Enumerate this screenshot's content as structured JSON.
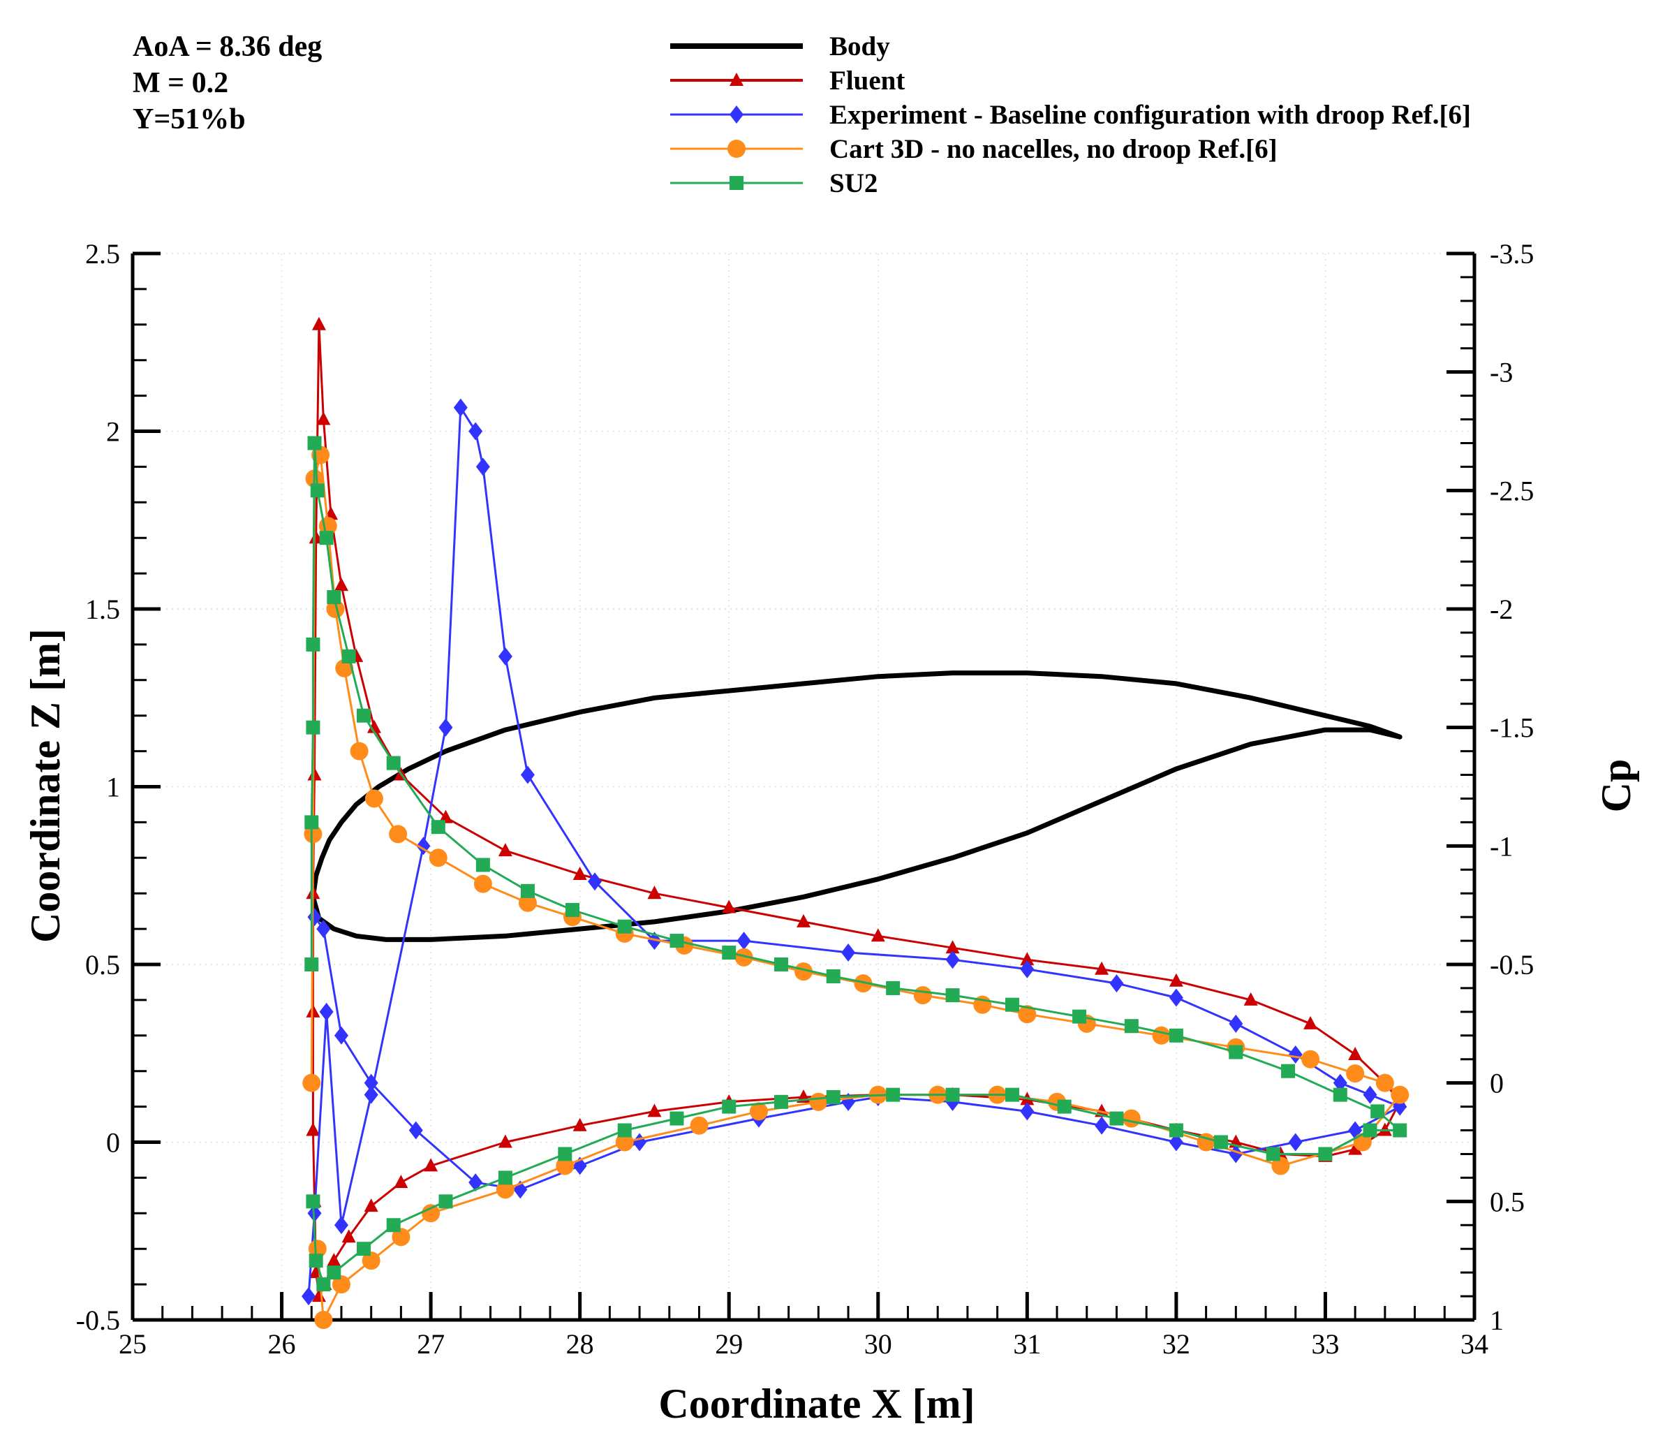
{
  "chart_data": {
    "type": "line",
    "annotations": [
      "AoA = 8.36 deg",
      "M = 0.2",
      "Y=51%b"
    ],
    "xlabel": "Coordinate X [m]",
    "ylabel_left": "Coordinate Z [m]",
    "ylabel_right": "Cp",
    "xlim": [
      25,
      34
    ],
    "ylim_left": [
      -0.5,
      2.5
    ],
    "ylim_right": [
      1,
      -3.5
    ],
    "x_ticks": [
      25,
      26,
      27,
      28,
      29,
      30,
      31,
      32,
      33,
      34
    ],
    "x_tick_labels": [
      "25",
      "26",
      "27",
      "28",
      "29",
      "30",
      "31",
      "32",
      "33",
      "34"
    ],
    "y_left_ticks": [
      -0.5,
      0,
      0.5,
      1,
      1.5,
      2,
      2.5
    ],
    "y_left_tick_labels": [
      "-0.5",
      "0",
      "0.5",
      "1",
      "1.5",
      "2",
      "2.5"
    ],
    "y_right_ticks": [
      1,
      0.5,
      0,
      -0.5,
      -1,
      -1.5,
      -2,
      -2.5,
      -3,
      -3.5
    ],
    "y_right_tick_labels": [
      "1",
      "0.5",
      "0",
      "-0.5",
      "-1",
      "-1.5",
      "-2",
      "-2.5",
      "-3",
      "-3.5"
    ],
    "legend_position": "top",
    "series": [
      {
        "name": "Body",
        "axis": "left",
        "color": "#000000",
        "marker": "none",
        "x": [
          26.21,
          26.23,
          26.27,
          26.32,
          26.4,
          26.5,
          26.65,
          26.85,
          27.1,
          27.5,
          28,
          28.5,
          29,
          29.5,
          30,
          30.5,
          31,
          31.5,
          32,
          32.5,
          33,
          33.3,
          33.5,
          33.3,
          33.0,
          32.5,
          32.0,
          31.5,
          31.0,
          30.5,
          30.0,
          29.5,
          29.0,
          28.5,
          28.0,
          27.5,
          27.0,
          26.7,
          26.5,
          26.35,
          26.25,
          26.21
        ],
        "y": [
          0.69,
          0.75,
          0.8,
          0.85,
          0.9,
          0.95,
          1.0,
          1.05,
          1.1,
          1.16,
          1.21,
          1.25,
          1.27,
          1.29,
          1.31,
          1.32,
          1.32,
          1.31,
          1.29,
          1.25,
          1.2,
          1.17,
          1.14,
          1.16,
          1.16,
          1.12,
          1.05,
          0.96,
          0.87,
          0.8,
          0.74,
          0.69,
          0.65,
          0.62,
          0.6,
          0.58,
          0.57,
          0.57,
          0.58,
          0.6,
          0.63,
          0.69
        ]
      },
      {
        "name": "Fluent",
        "axis": "right",
        "color": "#cc0000",
        "marker": "triangle",
        "x": [
          26.21,
          26.21,
          26.21,
          26.22,
          26.23,
          26.25,
          26.28,
          26.33,
          26.4,
          26.5,
          26.62,
          26.8,
          27.1,
          27.5,
          28,
          28.5,
          29,
          29.5,
          30,
          30.5,
          31,
          31.5,
          32,
          32.5,
          32.9,
          33.2,
          33.4,
          33.5,
          33.4,
          33.2,
          33.0,
          32.7,
          32.4,
          32.0,
          31.5,
          31.0,
          30.5,
          30.0,
          29.5,
          29.0,
          28.5,
          28.0,
          27.5,
          27.0,
          26.8,
          26.6,
          26.45,
          26.35,
          26.29,
          26.25,
          26.23,
          26.22,
          26.21
        ],
        "y": [
          0.2,
          -0.3,
          -0.8,
          -1.3,
          -2.3,
          -3.2,
          -2.8,
          -2.4,
          -2.1,
          -1.8,
          -1.5,
          -1.3,
          -1.12,
          -0.98,
          -0.88,
          -0.8,
          -0.74,
          -0.68,
          -0.62,
          -0.57,
          -0.52,
          -0.48,
          -0.43,
          -0.35,
          -0.25,
          -0.12,
          0.0,
          0.08,
          0.2,
          0.28,
          0.31,
          0.3,
          0.25,
          0.2,
          0.12,
          0.07,
          0.05,
          0.05,
          0.06,
          0.08,
          0.12,
          0.18,
          0.25,
          0.35,
          0.42,
          0.52,
          0.65,
          0.75,
          0.85,
          0.9,
          0.8,
          0.5,
          0.2
        ]
      },
      {
        "name": "Experiment - Baseline configuration with droop Ref.[6]",
        "axis": "right",
        "color": "#3333ff",
        "marker": "diamond",
        "x": [
          26.18,
          26.22,
          26.3,
          26.4,
          26.6,
          26.95,
          27.1,
          27.2,
          27.3,
          27.35,
          27.5,
          27.65,
          28.1,
          28.5,
          29.1,
          29.8,
          30.5,
          31.0,
          31.6,
          32.0,
          32.4,
          32.8,
          33.1,
          33.3,
          33.5,
          33.2,
          32.8,
          32.4,
          32.0,
          31.5,
          31.0,
          30.5,
          30.0,
          29.8,
          29.2,
          28.4,
          28.0,
          27.6,
          27.3,
          26.9,
          26.6,
          26.4,
          26.28,
          26.22
        ],
        "y": [
          0.9,
          0.55,
          -0.3,
          0.6,
          0.05,
          -1.0,
          -1.5,
          -2.85,
          -2.75,
          -2.6,
          -1.8,
          -1.3,
          -0.85,
          -0.6,
          -0.6,
          -0.55,
          -0.52,
          -0.48,
          -0.42,
          -0.36,
          -0.25,
          -0.12,
          0.0,
          0.05,
          0.1,
          0.2,
          0.25,
          0.3,
          0.25,
          0.18,
          0.12,
          0.08,
          0.06,
          0.08,
          0.15,
          0.25,
          0.35,
          0.45,
          0.42,
          0.2,
          0.0,
          -0.2,
          -0.65,
          -0.7
        ]
      },
      {
        "name": "Cart 3D - no nacelles, no droop Ref.[6]",
        "axis": "right",
        "color": "#ff8c1a",
        "marker": "circle",
        "x": [
          26.2,
          26.21,
          26.22,
          26.26,
          26.31,
          26.36,
          26.42,
          26.52,
          26.62,
          26.78,
          27.05,
          27.35,
          27.65,
          27.95,
          28.3,
          28.7,
          29.1,
          29.5,
          29.9,
          30.3,
          30.7,
          31.0,
          31.4,
          31.9,
          32.4,
          32.9,
          33.2,
          33.4,
          33.5,
          33.25,
          32.7,
          32.2,
          31.7,
          31.2,
          30.8,
          30.4,
          30.0,
          29.6,
          29.2,
          28.8,
          28.3,
          27.9,
          27.5,
          27.0,
          26.8,
          26.6,
          26.4,
          26.28,
          26.24
        ],
        "y": [
          0.0,
          -1.05,
          -2.55,
          -2.65,
          -2.35,
          -2.0,
          -1.75,
          -1.4,
          -1.2,
          -1.05,
          -0.95,
          -0.84,
          -0.76,
          -0.7,
          -0.63,
          -0.58,
          -0.53,
          -0.47,
          -0.42,
          -0.37,
          -0.33,
          -0.29,
          -0.25,
          -0.2,
          -0.15,
          -0.1,
          -0.04,
          0.0,
          0.05,
          0.25,
          0.35,
          0.25,
          0.15,
          0.08,
          0.05,
          0.05,
          0.05,
          0.08,
          0.12,
          0.18,
          0.25,
          0.35,
          0.45,
          0.55,
          0.65,
          0.75,
          0.85,
          1.0,
          0.7
        ]
      },
      {
        "name": "SU2",
        "axis": "right",
        "color": "#22aa55",
        "marker": "square",
        "x": [
          26.2,
          26.2,
          26.21,
          26.21,
          26.22,
          26.24,
          26.3,
          26.35,
          26.45,
          26.55,
          26.75,
          27.05,
          27.35,
          27.65,
          27.95,
          28.3,
          28.65,
          29.0,
          29.35,
          29.7,
          30.1,
          30.5,
          30.9,
          31.35,
          31.7,
          32.0,
          32.4,
          32.75,
          33.1,
          33.35,
          33.5,
          33.3,
          33.0,
          32.65,
          32.3,
          32.0,
          31.6,
          31.25,
          30.9,
          30.5,
          30.1,
          29.7,
          29.35,
          29.0,
          28.65,
          28.3,
          27.9,
          27.5,
          27.1,
          26.75,
          26.55,
          26.35,
          26.28,
          26.23,
          26.21
        ],
        "y": [
          -0.5,
          -1.1,
          -1.5,
          -1.85,
          -2.7,
          -2.5,
          -2.3,
          -2.05,
          -1.8,
          -1.55,
          -1.35,
          -1.08,
          -0.92,
          -0.81,
          -0.73,
          -0.66,
          -0.6,
          -0.55,
          -0.5,
          -0.45,
          -0.4,
          -0.37,
          -0.33,
          -0.28,
          -0.24,
          -0.2,
          -0.13,
          -0.05,
          0.05,
          0.12,
          0.2,
          0.2,
          0.3,
          0.3,
          0.25,
          0.2,
          0.15,
          0.1,
          0.05,
          0.05,
          0.05,
          0.06,
          0.08,
          0.1,
          0.15,
          0.2,
          0.3,
          0.4,
          0.5,
          0.6,
          0.7,
          0.8,
          0.85,
          0.75,
          0.5
        ]
      }
    ]
  }
}
